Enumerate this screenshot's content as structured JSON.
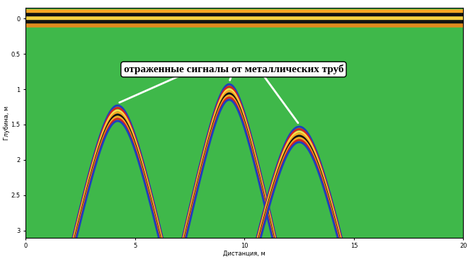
{
  "chart_data": {
    "type": "radargram",
    "annotation": "отраженные сигналы от металлических труб",
    "x_label": "Дистанция, м",
    "y_label": "Глубина, м",
    "xlim": [
      0,
      20
    ],
    "xticks": [
      0,
      5,
      10,
      15,
      20
    ],
    "ylim": [
      3.1,
      -0.15
    ],
    "yticks": [
      0,
      0.5,
      1,
      1.5,
      2,
      2.5,
      3
    ],
    "reflections": [
      {
        "x": 4.2,
        "depth": 1.3
      },
      {
        "x": 9.3,
        "depth": 1.0
      },
      {
        "x": 12.5,
        "depth": 1.6
      }
    ],
    "direct_wave_depths": [
      -0.1,
      -0.05,
      0,
      0.05,
      0.1
    ]
  }
}
